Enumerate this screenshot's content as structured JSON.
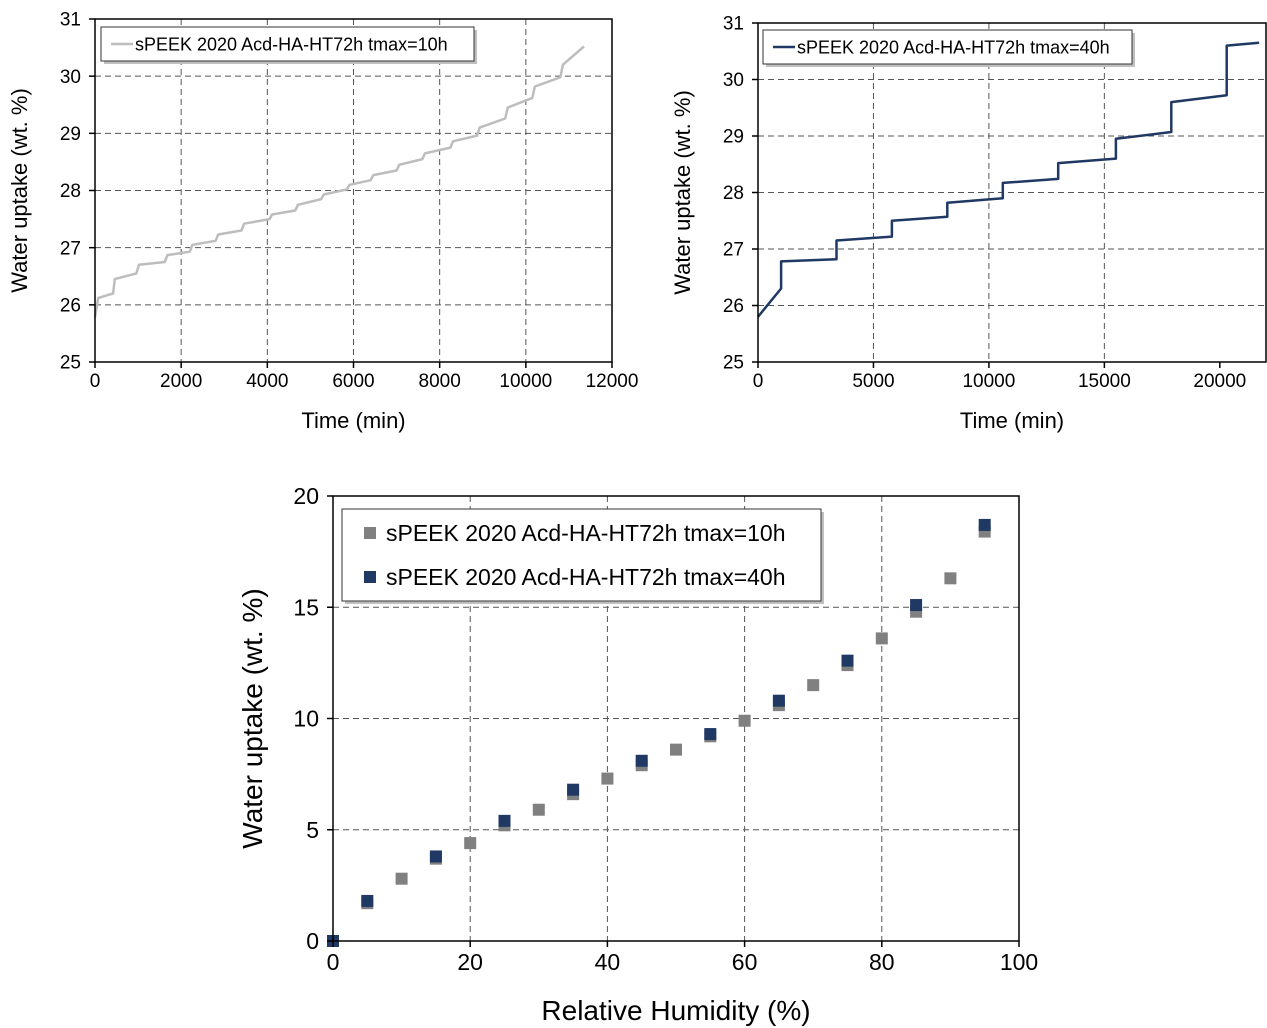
{
  "chart_data": [
    {
      "type": "line",
      "xlabel": "Time (min)",
      "ylabel": "Water uptake (wt. %)",
      "xlim": [
        0,
        12000
      ],
      "ylim": [
        25,
        31
      ],
      "xticks": [
        "0",
        "2000",
        "4000",
        "6000",
        "8000",
        "10000",
        "12000"
      ],
      "yticks": [
        "25",
        "26",
        "27",
        "28",
        "29",
        "30",
        "31"
      ],
      "grid": true,
      "legend_position": "top-left",
      "series": [
        {
          "name": "sPEEK 2020 Acd-HA-HT72h tmax=10h",
          "color": "#bdbdbd",
          "steps": [
            [
              0,
              25.78
            ],
            [
              75,
              26.12
            ],
            [
              420,
              26.2
            ],
            [
              460,
              26.45
            ],
            [
              960,
              26.55
            ],
            [
              1020,
              26.7
            ],
            [
              1620,
              26.75
            ],
            [
              1680,
              26.87
            ],
            [
              2200,
              26.93
            ],
            [
              2260,
              27.05
            ],
            [
              2800,
              27.12
            ],
            [
              2860,
              27.23
            ],
            [
              3400,
              27.3
            ],
            [
              3460,
              27.42
            ],
            [
              4050,
              27.5
            ],
            [
              4110,
              27.58
            ],
            [
              4650,
              27.65
            ],
            [
              4710,
              27.75
            ],
            [
              5250,
              27.85
            ],
            [
              5310,
              27.93
            ],
            [
              5850,
              28.02
            ],
            [
              5910,
              28.1
            ],
            [
              6400,
              28.18
            ],
            [
              6460,
              28.27
            ],
            [
              7000,
              28.35
            ],
            [
              7060,
              28.45
            ],
            [
              7600,
              28.55
            ],
            [
              7660,
              28.65
            ],
            [
              8250,
              28.75
            ],
            [
              8310,
              28.86
            ],
            [
              8870,
              28.96
            ],
            [
              8930,
              29.1
            ],
            [
              9520,
              29.26
            ],
            [
              9580,
              29.45
            ],
            [
              10150,
              29.62
            ],
            [
              10210,
              29.82
            ],
            [
              10800,
              29.98
            ],
            [
              10860,
              30.2
            ],
            [
              11350,
              30.52
            ]
          ]
        }
      ]
    },
    {
      "type": "line",
      "xlabel": "Time (min)",
      "ylabel": "Water uptake (wt. %)",
      "xlim": [
        0,
        22000
      ],
      "ylim": [
        25,
        31
      ],
      "xticks": [
        "0",
        "5000",
        "10000",
        "15000",
        "20000"
      ],
      "yticks": [
        "25",
        "26",
        "27",
        "28",
        "29",
        "30",
        "31"
      ],
      "grid": true,
      "legend_position": "top-left",
      "series": [
        {
          "name": "sPEEK 2020 Acd-HA-HT72h tmax=40h",
          "color": "#1f3864",
          "steps": [
            [
              0,
              25.8
            ],
            [
              1000,
              26.3
            ],
            [
              1000,
              26.78
            ],
            [
              3400,
              26.82
            ],
            [
              3400,
              27.15
            ],
            [
              5800,
              27.22
            ],
            [
              5800,
              27.5
            ],
            [
              8200,
              27.57
            ],
            [
              8200,
              27.82
            ],
            [
              10600,
              27.9
            ],
            [
              10600,
              28.17
            ],
            [
              13000,
              28.24
            ],
            [
              13000,
              28.52
            ],
            [
              15500,
              28.6
            ],
            [
              15500,
              28.95
            ],
            [
              17900,
              29.07
            ],
            [
              17900,
              29.6
            ],
            [
              20300,
              29.72
            ],
            [
              20300,
              30.6
            ],
            [
              21700,
              30.65
            ]
          ]
        }
      ]
    },
    {
      "type": "scatter",
      "xlabel": "Relative Humidity (%)",
      "ylabel": "Water uptake (wt. %)",
      "xlim": [
        0,
        100
      ],
      "ylim": [
        0,
        20
      ],
      "xticks": [
        "0",
        "20",
        "40",
        "60",
        "80",
        "100"
      ],
      "yticks": [
        "0",
        "5",
        "10",
        "15",
        "20"
      ],
      "grid": true,
      "legend_position": "top-left",
      "series": [
        {
          "name": "sPEEK 2020 Acd-HA-HT72h tmax=10h",
          "color": "#808080",
          "x": [
            0,
            5,
            10,
            15,
            20,
            25,
            30,
            35,
            40,
            45,
            50,
            55,
            60,
            65,
            70,
            75,
            80,
            85,
            90,
            95
          ],
          "y": [
            0,
            1.7,
            2.8,
            3.7,
            4.4,
            5.2,
            5.9,
            6.6,
            7.3,
            7.9,
            8.6,
            9.2,
            9.9,
            10.6,
            11.5,
            12.4,
            13.6,
            14.8,
            16.3,
            18.4
          ]
        },
        {
          "name": "sPEEK 2020 Acd-HA-HT72h tmax=40h",
          "color": "#1f3864",
          "x": [
            0,
            5,
            15,
            25,
            35,
            45,
            55,
            65,
            75,
            85,
            95
          ],
          "y": [
            0,
            1.8,
            3.8,
            5.4,
            6.8,
            8.1,
            9.3,
            10.8,
            12.6,
            15.1,
            18.7
          ]
        }
      ]
    }
  ]
}
